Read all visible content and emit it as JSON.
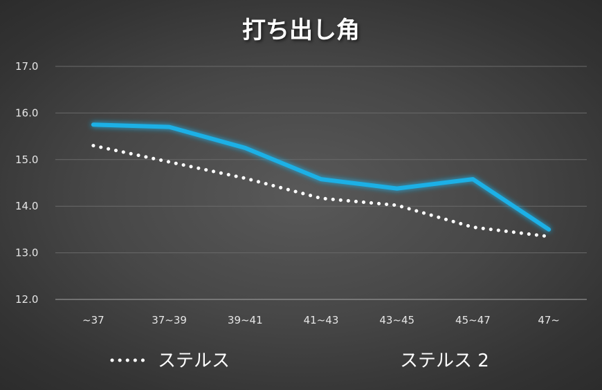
{
  "chart_data": {
    "type": "line",
    "title": "打ち出し角",
    "categories": [
      "~37",
      "37~39",
      "39~41",
      "41~43",
      "43~45",
      "45~47",
      "47~"
    ],
    "series": [
      {
        "name": "ステルス",
        "values": [
          15.3,
          14.95,
          14.6,
          14.17,
          14.02,
          13.55,
          13.35
        ],
        "color": "#ffffff",
        "style": "dotted"
      },
      {
        "name": "ステルス 2",
        "values": [
          15.75,
          15.7,
          15.25,
          14.58,
          14.38,
          14.58,
          13.5
        ],
        "color": "#1cb0e6",
        "style": "solid-glow"
      }
    ],
    "y_ticks": [
      "12.0",
      "13.0",
      "14.0",
      "15.0",
      "16.0",
      "17.0"
    ],
    "ylim": [
      12.0,
      17.0
    ],
    "xlabel": "",
    "ylabel": "",
    "grid": true,
    "legend_position": "bottom"
  }
}
